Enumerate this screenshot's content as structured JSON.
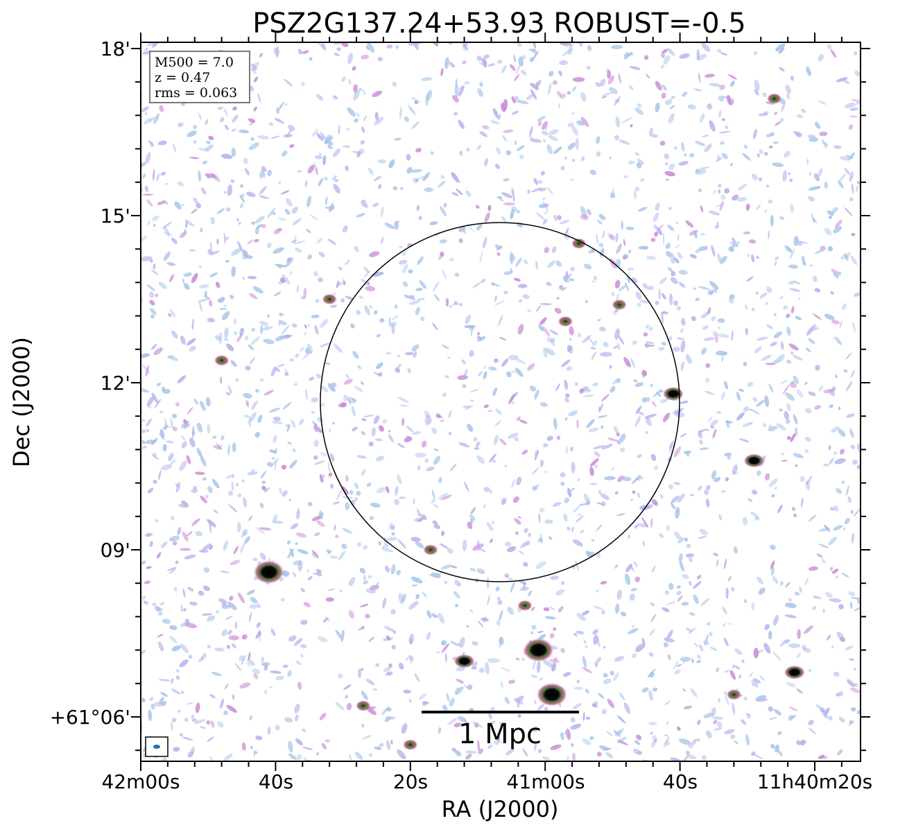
{
  "chart_data": {
    "type": "radio-map",
    "title": "PSZ2G137.24+53.93 ROBUST=-0.5",
    "xlabel": "RA (J2000)",
    "ylabel": "Dec (J2000)",
    "x_ticks": [
      "42m00s",
      "40s",
      "20s",
      "41m00s",
      "40s",
      "11h40m20s"
    ],
    "y_ticks": [
      "18'",
      "15'",
      "12'",
      "09'",
      "+61°06'"
    ],
    "info_box": [
      "M500 = 7.0",
      "z = 0.47",
      "rms = 0.063"
    ],
    "scale_bar_label": "1 Mpc",
    "sources": [
      {
        "ra": "11h41m41s",
        "dec": "+61°08.6'",
        "size": "bright"
      },
      {
        "ra": "11h41m01s",
        "dec": "+61°07.2'",
        "size": "bright"
      },
      {
        "ra": "11h40m59s",
        "dec": "+61°06.4'",
        "size": "bright"
      },
      {
        "ra": "11h41m12s",
        "dec": "+61°07.0'",
        "size": "medium"
      },
      {
        "ra": "11h40m41s",
        "dec": "+61°11.8'",
        "size": "medium"
      },
      {
        "ra": "11h40m29s",
        "dec": "+61°10.6'",
        "size": "medium"
      },
      {
        "ra": "11h40m23s",
        "dec": "+61°06.8'",
        "size": "medium"
      },
      {
        "ra": "11h41m32s",
        "dec": "+61°13.5'",
        "size": "small"
      },
      {
        "ra": "11h41m48s",
        "dec": "+61°12.4'",
        "size": "small"
      },
      {
        "ra": "11h40m49s",
        "dec": "+61°13.4'",
        "size": "small"
      },
      {
        "ra": "11h40m57s",
        "dec": "+61°13.1'",
        "size": "small"
      },
      {
        "ra": "11h40m55s",
        "dec": "+61°14.5'",
        "size": "small"
      },
      {
        "ra": "11h40m26s",
        "dec": "+61°17.1'",
        "size": "small"
      },
      {
        "ra": "11h41m03s",
        "dec": "+61°08.0'",
        "size": "small"
      },
      {
        "ra": "11h41m17s",
        "dec": "+61°09.0'",
        "size": "small"
      },
      {
        "ra": "11h41m27s",
        "dec": "+61°06.2'",
        "size": "small"
      },
      {
        "ra": "11h41m20s",
        "dec": "+61°05.5'",
        "size": "small"
      },
      {
        "ra": "11h40m32s",
        "dec": "+61°06.4'",
        "size": "small"
      }
    ],
    "circle": {
      "label": "",
      "radius_arcmin": 3.2
    },
    "colors": {
      "background": "#ffffff",
      "noise_light": "#a8c6e8",
      "noise_mid": "#b5b0ec",
      "source_halo": "#c88ad6",
      "source_mid": "#5a7a4a",
      "source_core": "#000000",
      "beam": "#2a6fb0"
    }
  }
}
